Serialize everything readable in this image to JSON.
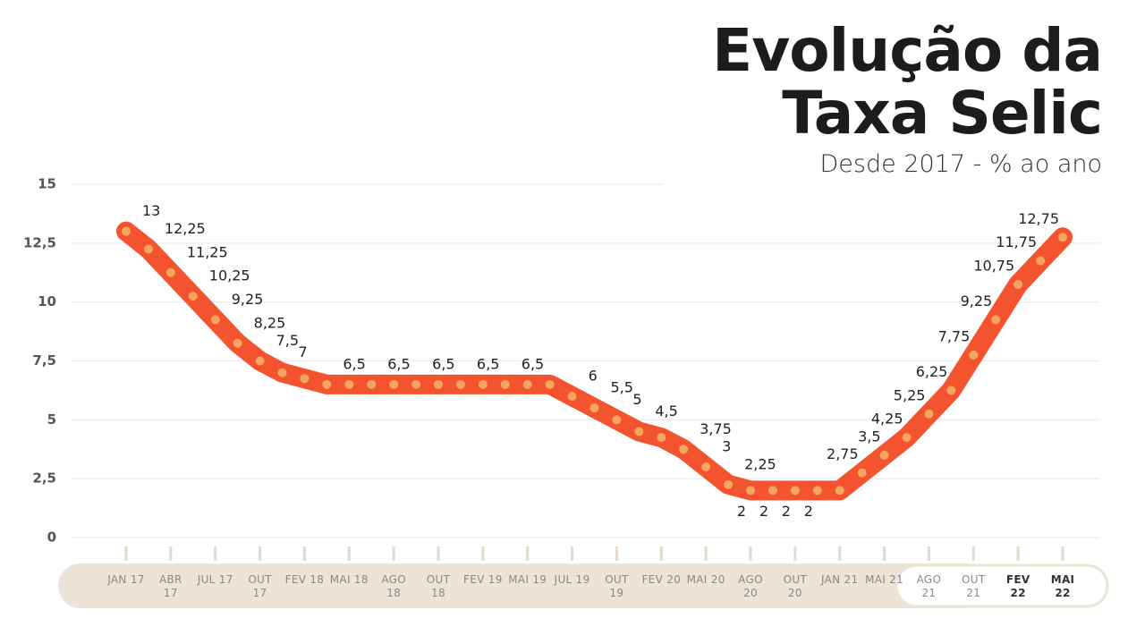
{
  "chart_data": {
    "type": "line",
    "title": "Evolução da Taxa Selic",
    "subtitle": "Desde 2017 - % ao ano",
    "categories": [
      "JAN 17",
      null,
      "ABR 17",
      null,
      "JUL 17",
      null,
      "OUT 17",
      null,
      "FEV 18",
      null,
      "MAI 18",
      null,
      "AGO 18",
      null,
      "OUT 18",
      null,
      "FEV 19",
      null,
      "MAI 19",
      null,
      "JUL 19",
      null,
      "OUT 19",
      null,
      "FEV 20",
      null,
      "MAI 20",
      null,
      "AGO 20",
      null,
      "OUT 20",
      null,
      "JAN 21",
      null,
      "MAI 21",
      null,
      "AGO 21",
      null,
      "OUT 21",
      null,
      "FEV 22",
      null,
      "MAI 22"
    ],
    "series": [
      {
        "name": "Selic",
        "color": "#f4532f",
        "marker_color": "#f5a55c",
        "values": [
          13,
          12.25,
          11.25,
          10.25,
          9.25,
          8.25,
          7.5,
          7,
          6.75,
          6.5,
          6.5,
          6.5,
          6.5,
          6.5,
          6.5,
          6.5,
          6.5,
          6.5,
          6.5,
          6.5,
          6,
          5.5,
          5,
          4.5,
          4.25,
          3.75,
          3,
          2.25,
          2,
          2,
          2,
          2,
          2,
          2.75,
          3.5,
          4.25,
          5.25,
          6.25,
          7.75,
          9.25,
          10.75,
          11.75,
          12.75
        ],
        "value_labels": [
          "13",
          "12,25",
          "11,25",
          "10,25",
          "9,25",
          "8,25",
          "7,5",
          "7",
          null,
          "6,5",
          null,
          "6,5",
          null,
          "6,5",
          null,
          "6,5",
          null,
          "6,5",
          null,
          null,
          "6",
          "5,5",
          "5",
          "4,5",
          null,
          "3,75",
          "3",
          "2,25",
          "2",
          "2",
          "2",
          "2",
          null,
          "2,75",
          "3,5",
          "4,25",
          "5,25",
          "6,25",
          "7,75",
          "9,25",
          "10,75",
          "11,75",
          "12,75"
        ]
      }
    ],
    "ylim": [
      0,
      15
    ],
    "yticks": [
      0,
      {
        "value": 2.5,
        "label": "2,5"
      },
      5,
      {
        "value": 7.5,
        "label": "7,5"
      },
      10,
      {
        "value": 12.5,
        "label": "12,5"
      },
      15
    ],
    "grid": true
  }
}
